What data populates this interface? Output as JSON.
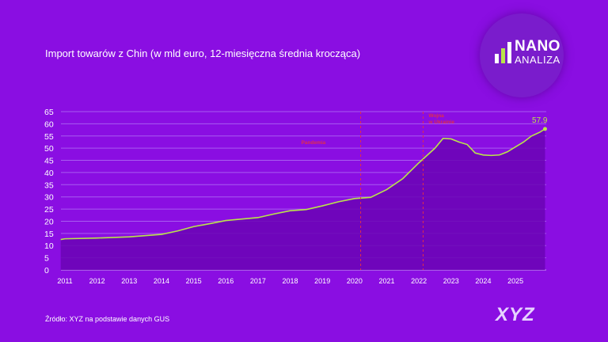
{
  "title": "Import towarów z Chin (w mld euro, 12-miesięczna średnia krocząca)",
  "logo": {
    "line1": "NANO",
    "line2": "ANALIZA"
  },
  "source": "Źródło: XYZ na podstawie danych GUS",
  "brand": "XYZ",
  "colors": {
    "background": "#8a0ee2",
    "line": "#b9e44a",
    "fill": "#6a04b4",
    "annotation": "#e0304a"
  },
  "chart_data": {
    "type": "area",
    "title": "Import towarów z Chin (w mld euro, 12-miesięczna średnia krocząca)",
    "xlabel": "",
    "ylabel": "",
    "ylim": [
      0,
      65
    ],
    "yticks": [
      0,
      5,
      10,
      15,
      20,
      25,
      30,
      35,
      40,
      45,
      50,
      55,
      60,
      65
    ],
    "xticks": [
      "2011",
      "2012",
      "2013",
      "2014",
      "2015",
      "2016",
      "2017",
      "2018",
      "2019",
      "2020",
      "2021",
      "2022",
      "2023",
      "2024",
      "2025"
    ],
    "grid": true,
    "x": [
      2010.87,
      2011.0,
      2012.0,
      2013.0,
      2014.0,
      2014.5,
      2015.0,
      2015.5,
      2016.0,
      2017.0,
      2017.5,
      2018.0,
      2018.5,
      2019.0,
      2019.5,
      2020.0,
      2020.5,
      2021.0,
      2021.5,
      2022.0,
      2022.5,
      2022.75,
      2023.0,
      2023.25,
      2023.5,
      2023.75,
      2024.0,
      2024.25,
      2024.5,
      2024.75,
      2025.0,
      2025.25,
      2025.5,
      2025.75,
      2025.92
    ],
    "values": [
      12.5,
      12.8,
      13.1,
      13.6,
      14.6,
      16,
      17.8,
      19,
      20.3,
      21.5,
      23,
      24.3,
      24.8,
      26.3,
      28,
      29.3,
      29.8,
      33,
      37.5,
      44,
      50,
      54,
      53.8,
      52.5,
      51.5,
      48,
      47.2,
      47,
      47.2,
      48.5,
      50.5,
      52.5,
      55,
      56.5,
      57.9
    ],
    "last_label": "57.9",
    "annotations": [
      {
        "label": "Pandemia",
        "x": 2020.19
      },
      {
        "label": "Wojna\nw Ukrainie",
        "x": 2022.13
      }
    ]
  }
}
